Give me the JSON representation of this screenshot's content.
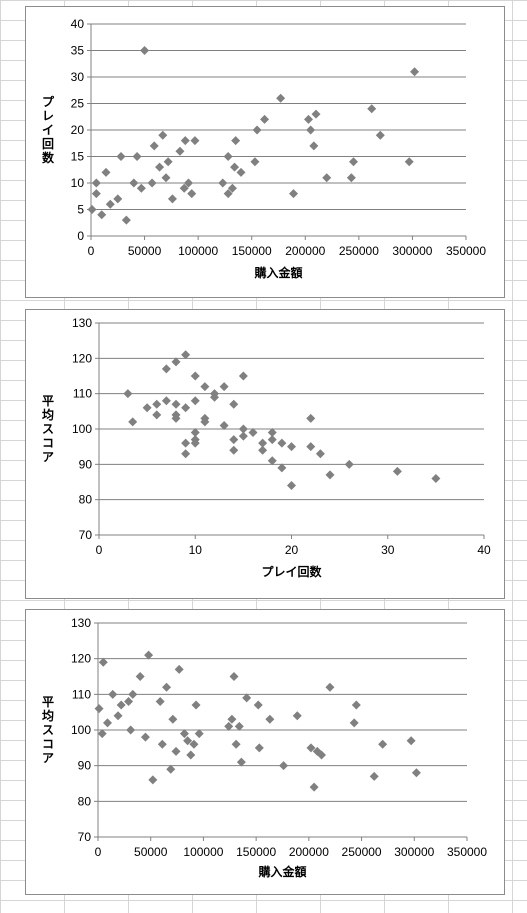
{
  "chart_data": [
    {
      "type": "scatter",
      "xlabel": "購入金額",
      "ylabel": "プレイ回数",
      "xlim": [
        0,
        350000
      ],
      "ylim": [
        0,
        40
      ],
      "xticks": [
        "0",
        "50000",
        "100000",
        "150000",
        "200000",
        "250000",
        "300000",
        "350000"
      ],
      "yticks": [
        "0",
        "5",
        "10",
        "15",
        "20",
        "25",
        "30",
        "35",
        "40"
      ],
      "grid": true,
      "marker_color": "#808080",
      "points": [
        [
          1000,
          5
        ],
        [
          5000,
          10
        ],
        [
          5000,
          8
        ],
        [
          10000,
          4
        ],
        [
          14000,
          12
        ],
        [
          18000,
          6
        ],
        [
          25000,
          7
        ],
        [
          28000,
          15
        ],
        [
          33000,
          3
        ],
        [
          40000,
          10
        ],
        [
          43000,
          15
        ],
        [
          47000,
          9
        ],
        [
          50000,
          35
        ],
        [
          57000,
          10
        ],
        [
          59000,
          17
        ],
        [
          64000,
          13
        ],
        [
          67000,
          19
        ],
        [
          70000,
          11
        ],
        [
          72000,
          14
        ],
        [
          76000,
          7
        ],
        [
          83000,
          16
        ],
        [
          87000,
          9
        ],
        [
          88000,
          18
        ],
        [
          91000,
          10
        ],
        [
          94000,
          8
        ],
        [
          97000,
          18
        ],
        [
          123000,
          10
        ],
        [
          128000,
          15
        ],
        [
          128000,
          8
        ],
        [
          132000,
          9
        ],
        [
          134000,
          13
        ],
        [
          135000,
          18
        ],
        [
          140000,
          12
        ],
        [
          153000,
          14
        ],
        [
          155000,
          20
        ],
        [
          162000,
          22
        ],
        [
          177000,
          26
        ],
        [
          189000,
          8
        ],
        [
          203000,
          22
        ],
        [
          205000,
          20
        ],
        [
          208000,
          17
        ],
        [
          210000,
          23
        ],
        [
          220000,
          11
        ],
        [
          262000,
          24
        ],
        [
          243000,
          11
        ],
        [
          245000,
          14
        ],
        [
          270000,
          19
        ],
        [
          297000,
          14
        ],
        [
          302000,
          31
        ]
      ]
    },
    {
      "type": "scatter",
      "xlabel": "プレイ回数",
      "ylabel": "平均スコア",
      "xlim": [
        0,
        40
      ],
      "ylim": [
        70,
        130
      ],
      "xticks": [
        "0",
        "10",
        "20",
        "30",
        "40"
      ],
      "yticks": [
        "70",
        "80",
        "90",
        "100",
        "110",
        "120",
        "130"
      ],
      "grid": true,
      "marker_color": "#808080",
      "points": [
        [
          3,
          110
        ],
        [
          3.5,
          102
        ],
        [
          5,
          106
        ],
        [
          6,
          107
        ],
        [
          6,
          104
        ],
        [
          7,
          117
        ],
        [
          7,
          108
        ],
        [
          8,
          119
        ],
        [
          8,
          104
        ],
        [
          8,
          103
        ],
        [
          8,
          107
        ],
        [
          9,
          121
        ],
        [
          9,
          106
        ],
        [
          9,
          96
        ],
        [
          9,
          93
        ],
        [
          10,
          115
        ],
        [
          10,
          108
        ],
        [
          10,
          99
        ],
        [
          10,
          97
        ],
        [
          10,
          96
        ],
        [
          11,
          112
        ],
        [
          11,
          103
        ],
        [
          11,
          102
        ],
        [
          12,
          110
        ],
        [
          12,
          109
        ],
        [
          13,
          112
        ],
        [
          13,
          101
        ],
        [
          14,
          107
        ],
        [
          14,
          97
        ],
        [
          14,
          94
        ],
        [
          15,
          115
        ],
        [
          15,
          100
        ],
        [
          15,
          98
        ],
        [
          16,
          99
        ],
        [
          17,
          96
        ],
        [
          17,
          94
        ],
        [
          18,
          99
        ],
        [
          18,
          97
        ],
        [
          18,
          91
        ],
        [
          19,
          96
        ],
        [
          19,
          89
        ],
        [
          20,
          95
        ],
        [
          20,
          84
        ],
        [
          22,
          103
        ],
        [
          22,
          95
        ],
        [
          23,
          93
        ],
        [
          24,
          87
        ],
        [
          26,
          90
        ],
        [
          31,
          88
        ],
        [
          35,
          86
        ]
      ]
    },
    {
      "type": "scatter",
      "xlabel": "購入金額",
      "ylabel": "平均スコア",
      "xlim": [
        0,
        350000
      ],
      "ylim": [
        70,
        130
      ],
      "xticks": [
        "0",
        "50000",
        "100000",
        "150000",
        "200000",
        "250000",
        "300000",
        "350000"
      ],
      "yticks": [
        "70",
        "80",
        "90",
        "100",
        "110",
        "120",
        "130"
      ],
      "grid": true,
      "marker_color": "#808080",
      "points": [
        [
          1000,
          106
        ],
        [
          4000,
          99
        ],
        [
          5000,
          119
        ],
        [
          9000,
          102
        ],
        [
          14000,
          110
        ],
        [
          19000,
          104
        ],
        [
          22000,
          107
        ],
        [
          29000,
          108
        ],
        [
          31000,
          100
        ],
        [
          33000,
          110
        ],
        [
          40000,
          115
        ],
        [
          45000,
          98
        ],
        [
          48000,
          121
        ],
        [
          52000,
          86
        ],
        [
          59000,
          108
        ],
        [
          61000,
          96
        ],
        [
          65000,
          112
        ],
        [
          69000,
          89
        ],
        [
          71000,
          103
        ],
        [
          74000,
          94
        ],
        [
          77000,
          117
        ],
        [
          82000,
          99
        ],
        [
          85000,
          97
        ],
        [
          88000,
          93
        ],
        [
          91000,
          96
        ],
        [
          93000,
          107
        ],
        [
          96000,
          99
        ],
        [
          124000,
          101
        ],
        [
          127000,
          103
        ],
        [
          129000,
          115
        ],
        [
          131000,
          96
        ],
        [
          134000,
          101
        ],
        [
          136000,
          91
        ],
        [
          141000,
          109
        ],
        [
          152000,
          107
        ],
        [
          153000,
          95
        ],
        [
          163000,
          103
        ],
        [
          176000,
          90
        ],
        [
          189000,
          104
        ],
        [
          202000,
          95
        ],
        [
          205000,
          84
        ],
        [
          208000,
          94
        ],
        [
          212000,
          93
        ],
        [
          220000,
          112
        ],
        [
          243000,
          102
        ],
        [
          245000,
          107
        ],
        [
          270000,
          96
        ],
        [
          262000,
          87
        ],
        [
          297000,
          97
        ],
        [
          302000,
          88
        ]
      ]
    }
  ]
}
